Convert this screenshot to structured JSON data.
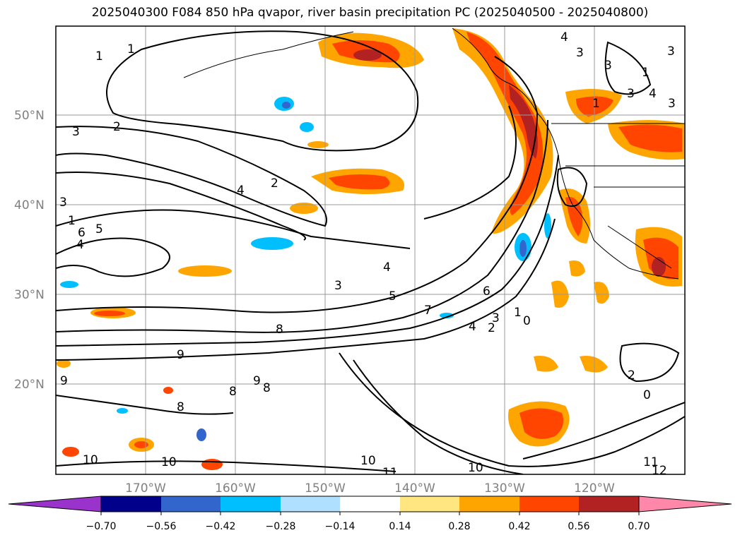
{
  "title": "2025040300 F084 850 hPa qvapor, river basin precipitation PC (2025040500 - 2025040800)",
  "lat_labels": [
    "50°N",
    "40°N",
    "30°N",
    "20°N"
  ],
  "lon_labels": [
    "170°W",
    "160°W",
    "150°W",
    "140°W",
    "130°W",
    "120°W"
  ],
  "contour_labels": [
    "1",
    "1",
    "3",
    "2",
    "2",
    "4",
    "3",
    "1",
    "6",
    "5",
    "4",
    "4",
    "3",
    "5",
    "7",
    "6",
    "4",
    "3",
    "2",
    "1",
    "0",
    "8",
    "9",
    "9",
    "8",
    "8",
    "9",
    "8",
    "10",
    "10",
    "10",
    "11",
    "10",
    "11",
    "2",
    "0",
    "4",
    "3",
    "3",
    "3",
    "3",
    "4",
    "1",
    "1",
    "3",
    "12"
  ],
  "colorbar": {
    "ticks": [
      "−0.70",
      "−0.56",
      "−0.42",
      "−0.28",
      "−0.14",
      "0.14",
      "0.28",
      "0.42",
      "0.56",
      "0.70"
    ],
    "colors": [
      "#9933cc",
      "#00008b",
      "#3366cc",
      "#00bfff",
      "#b0e0ff",
      "#ffffff",
      "#ffe680",
      "#ffa500",
      "#ff4500",
      "#b22222",
      "#ff88aa"
    ]
  },
  "colors": {
    "contour": "#000000",
    "grid": "#999999",
    "label": "#808080"
  }
}
